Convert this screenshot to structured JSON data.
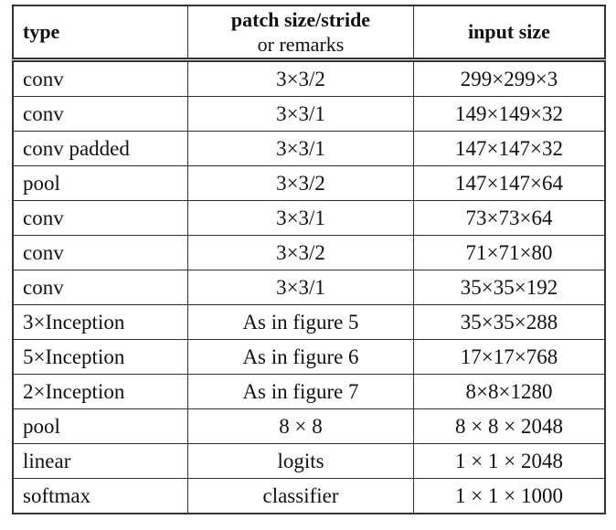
{
  "table": {
    "header": [
      "type",
      [
        "patch size/stride",
        "or remarks"
      ],
      "input size"
    ],
    "rows": [
      [
        "conv",
        "3×3/2",
        "299×299×3"
      ],
      [
        "conv",
        "3×3/1",
        "149×149×32"
      ],
      [
        "conv padded",
        "3×3/1",
        "147×147×32"
      ],
      [
        "pool",
        "3×3/2",
        "147×147×64"
      ],
      [
        "conv",
        "3×3/1",
        "73×73×64"
      ],
      [
        "conv",
        "3×3/2",
        "71×71×80"
      ],
      [
        "conv",
        "3×3/1",
        "35×35×192"
      ],
      [
        "3×Inception",
        "As in figure 5",
        "35×35×288"
      ],
      [
        "5×Inception",
        "As in figure 6",
        "17×17×768"
      ],
      [
        "2×Inception",
        "As in figure 7",
        "8×8×1280"
      ],
      [
        "pool",
        "8 × 8",
        "8 × 8 × 2048"
      ],
      [
        "linear",
        "logits",
        "1 × 1 × 2048"
      ],
      [
        "softmax",
        "classifier",
        "1 × 1 × 1000"
      ]
    ]
  }
}
